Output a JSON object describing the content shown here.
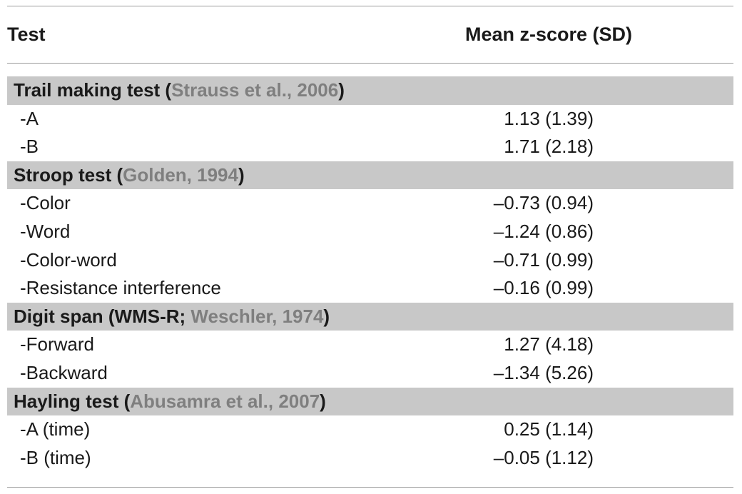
{
  "header": {
    "test": "Test",
    "score": "Mean z-score (SD)"
  },
  "groups": [
    {
      "name_pre": "Trail making test (",
      "cite": "Strauss et al., 2006",
      "name_post": ")",
      "items": [
        {
          "label": "-A",
          "value": "1.13 (1.39)"
        },
        {
          "label": "-B",
          "value": "1.71 (2.18)"
        }
      ]
    },
    {
      "name_pre": "Stroop test (",
      "cite": "Golden, 1994",
      "name_post": ")",
      "items": [
        {
          "label": "-Color",
          "value": "–0.73 (0.94)"
        },
        {
          "label": "-Word",
          "value": "–1.24 (0.86)"
        },
        {
          "label": "-Color-word",
          "value": "–0.71 (0.99)"
        },
        {
          "label": "-Resistance interference",
          "value": "–0.16 (0.99)"
        }
      ]
    },
    {
      "name_pre": "Digit span (WMS-R; ",
      "cite": "Weschler, 1974",
      "name_post": ")",
      "items": [
        {
          "label": "-Forward",
          "value": "1.27 (4.18)"
        },
        {
          "label": "-Backward",
          "value": "–1.34 (5.26)"
        }
      ]
    },
    {
      "name_pre": "Hayling test (",
      "cite": "Abusamra et al., 2007",
      "name_post": ")",
      "items": [
        {
          "label": "-A (time)",
          "value": "0.25 (1.14)"
        },
        {
          "label": "-B (time)",
          "value": "–0.05 (1.12)"
        }
      ]
    }
  ]
}
